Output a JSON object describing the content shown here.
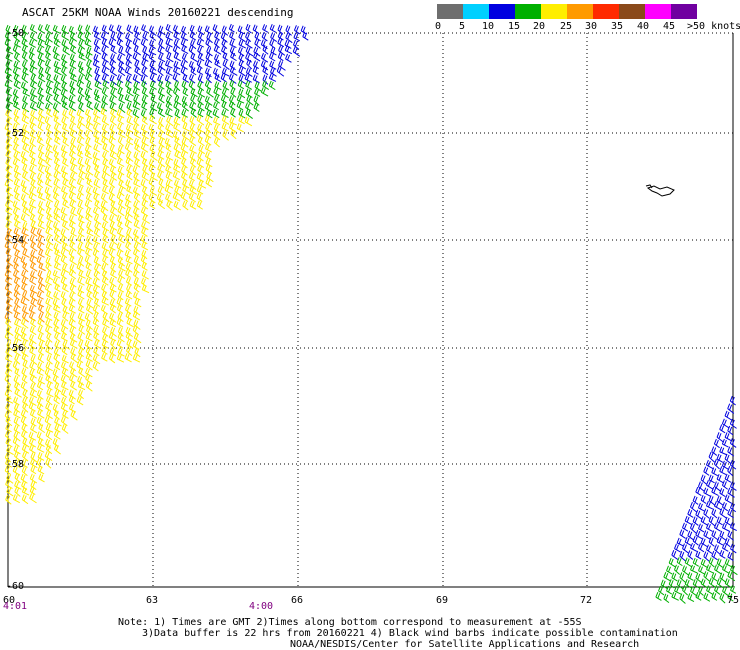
{
  "title": "ASCAT 25KM NOAA Winds 20160221 descending",
  "legend": {
    "colors": [
      "#6e6e6e",
      "#00d0ff",
      "#0000e0",
      "#00b000",
      "#ffee00",
      "#ff9a00",
      "#ff2a00",
      "#8a4a1a",
      "#ff00ff",
      "#7000a0"
    ],
    "labels": [
      "0",
      "5",
      "10",
      "15",
      "20",
      "25",
      "30",
      "35",
      "40",
      "45",
      ">50 knots"
    ]
  },
  "lat_labels": [
    "-50",
    "-52",
    "-54",
    "-56",
    "-58",
    "-60"
  ],
  "lon_labels": [
    "60",
    "63",
    "66",
    "69",
    "72",
    "75"
  ],
  "time_labels": [
    "4:01",
    "4:00"
  ],
  "notes": [
    "Note: 1) Times are GMT 2)Times along bottom correspond to measurement at -55S",
    "3)Data buffer is 22 hrs from 20160221 4) Black wind barbs indicate possible contamination",
    "NOAA/NESDIS/Center for Satellite Applications and Research"
  ],
  "map_extent": {
    "lon_min": 60,
    "lon_max": 75,
    "lat_top": -50,
    "lat_bottom": -60
  }
}
